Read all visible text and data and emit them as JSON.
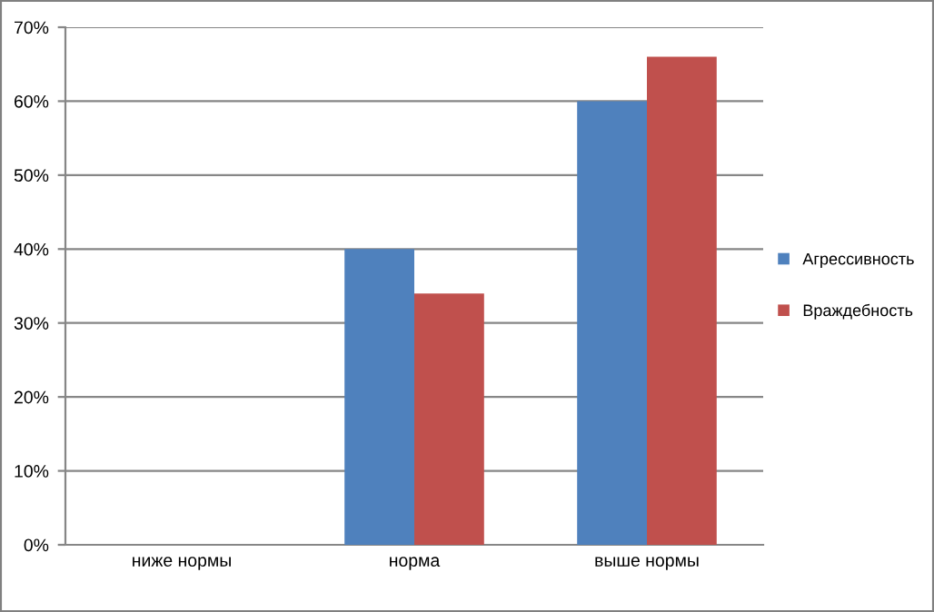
{
  "chart_data": {
    "type": "bar",
    "categories": [
      "ниже нормы",
      "норма",
      "выше нормы"
    ],
    "series": [
      {
        "name": "Агрессивность",
        "color": "#4f81bd",
        "values": [
          0,
          40,
          60
        ]
      },
      {
        "name": "Враждебность",
        "color": "#c0504d",
        "values": [
          0,
          34,
          66
        ]
      }
    ],
    "ylim": [
      0,
      70
    ],
    "yticks": [
      {
        "value": 0,
        "label": "0%"
      },
      {
        "value": 10,
        "label": "10%"
      },
      {
        "value": 20,
        "label": "20%"
      },
      {
        "value": 30,
        "label": "30%"
      },
      {
        "value": 40,
        "label": "40%"
      },
      {
        "value": 50,
        "label": "50%"
      },
      {
        "value": 60,
        "label": "60%"
      },
      {
        "value": 70,
        "label": "70%"
      }
    ],
    "grid": "y",
    "legend": "right"
  }
}
